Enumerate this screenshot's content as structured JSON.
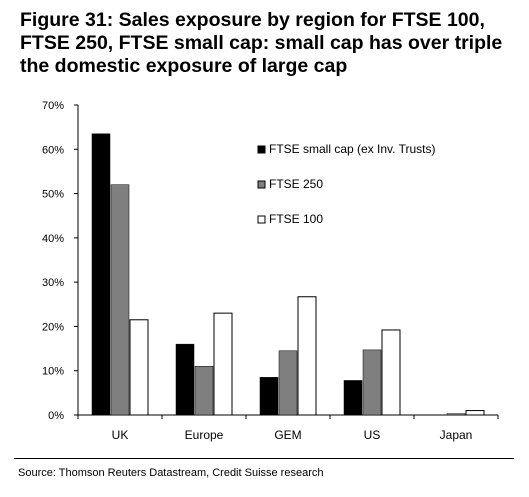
{
  "title": "Figure 31: Sales exposure by region for FTSE 100, FTSE 250, FTSE small cap: small cap has over triple the domestic exposure of large cap",
  "source": "Source: Thomson Reuters Datastream, Credit Suisse research",
  "chart_data": {
    "type": "bar",
    "title": "",
    "xlabel": "",
    "ylabel": "",
    "categories": [
      "UK",
      "Europe",
      "GEM",
      "US",
      "Japan"
    ],
    "ylim": [
      0,
      70
    ],
    "yticks": [
      0,
      10,
      20,
      30,
      40,
      50,
      60,
      70
    ],
    "ytick_labels": [
      "0%",
      "10%",
      "20%",
      "30%",
      "40%",
      "50%",
      "60%",
      "70%"
    ],
    "grid": false,
    "legend_position": "right",
    "series": [
      {
        "name": "FTSE small cap (ex Inv. Trusts)",
        "values": [
          63.5,
          16,
          8.5,
          7.8,
          0
        ],
        "color": "#000000"
      },
      {
        "name": "FTSE 250",
        "values": [
          52,
          11,
          14.5,
          14.7,
          0.3
        ],
        "color": "#7f7f7f"
      },
      {
        "name": "FTSE 100",
        "values": [
          21.5,
          23,
          26.7,
          19.2,
          1
        ],
        "color": "#ffffff"
      }
    ]
  }
}
